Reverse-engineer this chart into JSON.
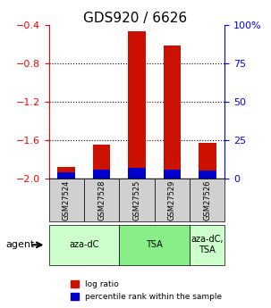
{
  "title": "GDS920 / 6626",
  "samples": [
    "GSM27524",
    "GSM27528",
    "GSM27525",
    "GSM27529",
    "GSM27526"
  ],
  "log_ratio": [
    -1.88,
    -1.65,
    -0.47,
    -0.62,
    -1.63
  ],
  "percentile_rank": [
    0.04,
    0.06,
    0.07,
    0.06,
    0.05
  ],
  "bar_bottom": -2.0,
  "ylim_left": [
    -2.0,
    -0.4
  ],
  "ylim_right": [
    0,
    100
  ],
  "yticks_left": [
    -2.0,
    -1.6,
    -1.2,
    -0.8,
    -0.4
  ],
  "yticks_right": [
    0,
    25,
    50,
    75,
    100
  ],
  "ytick_labels_right": [
    "0",
    "25",
    "50",
    "75",
    "100%"
  ],
  "groups": [
    {
      "label": "aza-dC",
      "start": 0,
      "end": 2,
      "color": "#ccffcc"
    },
    {
      "label": "TSA",
      "start": 2,
      "end": 4,
      "color": "#88ee88"
    },
    {
      "label": "aza-dC,\nTSA",
      "start": 4,
      "end": 5,
      "color": "#ccffcc"
    }
  ],
  "bar_color_red": "#cc1100",
  "bar_color_blue": "#0000cc",
  "agent_label": "agent",
  "legend_red": "log ratio",
  "legend_blue": "percentile rank within the sample",
  "bar_width": 0.5,
  "fig_width": 3.03,
  "fig_height": 3.45,
  "dpi": 100
}
